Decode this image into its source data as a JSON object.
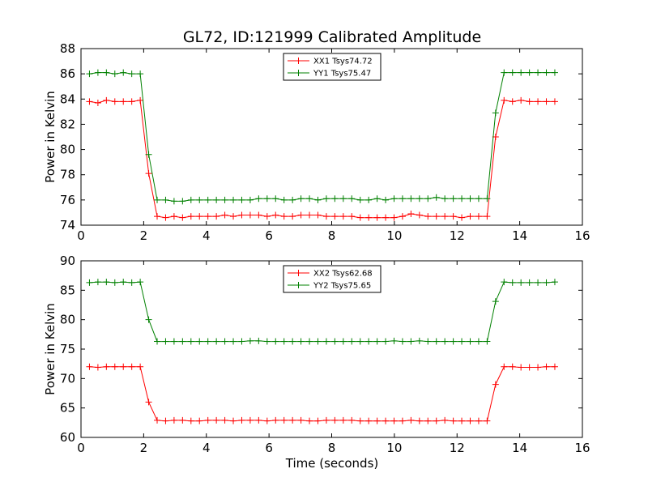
{
  "chart_data": {
    "title": "GL72, ID:121999 Calibrated Amplitude",
    "xlabel": "Time (seconds)",
    "grid": false,
    "panels": [
      {
        "type": "line",
        "ylabel": "Power in Kelvin",
        "xlim": [
          0,
          16
        ],
        "ylim": [
          74,
          88
        ],
        "xticks": [
          "0",
          "2",
          "4",
          "6",
          "8",
          "10",
          "12",
          "14",
          "16"
        ],
        "yticks": [
          "74",
          "76",
          "78",
          "80",
          "82",
          "84",
          "86",
          "88"
        ],
        "legend_position": "upper-center",
        "x": [
          0.27,
          0.54,
          0.81,
          1.08,
          1.35,
          1.62,
          1.89,
          2.16,
          2.43,
          2.7,
          2.97,
          3.24,
          3.51,
          3.78,
          4.05,
          4.32,
          4.59,
          4.86,
          5.13,
          5.4,
          5.67,
          5.94,
          6.21,
          6.48,
          6.75,
          7.02,
          7.29,
          7.56,
          7.83,
          8.1,
          8.37,
          8.64,
          8.91,
          9.18,
          9.45,
          9.72,
          9.99,
          10.26,
          10.53,
          10.8,
          11.07,
          11.34,
          11.61,
          11.88,
          12.15,
          12.42,
          12.69,
          12.96,
          13.23,
          13.5,
          13.77,
          14.04,
          14.31,
          14.58,
          14.85,
          15.12
        ],
        "series": [
          {
            "name": "XX1 Tsys74.72",
            "color": "#ff0000",
            "values": [
              83.8,
              83.7,
              83.9,
              83.8,
              83.8,
              83.8,
              83.9,
              78.1,
              74.7,
              74.6,
              74.7,
              74.6,
              74.7,
              74.7,
              74.7,
              74.7,
              74.8,
              74.7,
              74.8,
              74.8,
              74.8,
              74.7,
              74.8,
              74.7,
              74.7,
              74.8,
              74.8,
              74.8,
              74.7,
              74.7,
              74.7,
              74.7,
              74.6,
              74.6,
              74.6,
              74.6,
              74.6,
              74.7,
              74.9,
              74.8,
              74.7,
              74.7,
              74.7,
              74.7,
              74.6,
              74.7,
              74.7,
              74.7,
              81.0,
              83.9,
              83.8,
              83.9,
              83.8,
              83.8,
              83.8,
              83.8
            ]
          },
          {
            "name": "YY1 Tsys75.47",
            "color": "#008000",
            "values": [
              86.0,
              86.1,
              86.1,
              86.0,
              86.1,
              86.0,
              86.0,
              79.6,
              76.0,
              76.0,
              75.9,
              75.9,
              76.0,
              76.0,
              76.0,
              76.0,
              76.0,
              76.0,
              76.0,
              76.0,
              76.1,
              76.1,
              76.1,
              76.0,
              76.0,
              76.1,
              76.1,
              76.0,
              76.1,
              76.1,
              76.1,
              76.1,
              76.0,
              76.0,
              76.1,
              76.0,
              76.1,
              76.1,
              76.1,
              76.1,
              76.1,
              76.2,
              76.1,
              76.1,
              76.1,
              76.1,
              76.1,
              76.1,
              82.9,
              86.1,
              86.1,
              86.1,
              86.1,
              86.1,
              86.1,
              86.1
            ]
          }
        ]
      },
      {
        "type": "line",
        "ylabel": "Power in Kelvin",
        "xlim": [
          0,
          16
        ],
        "ylim": [
          60,
          90
        ],
        "xticks": [
          "0",
          "2",
          "4",
          "6",
          "8",
          "10",
          "12",
          "14",
          "16"
        ],
        "yticks": [
          "60",
          "65",
          "70",
          "75",
          "80",
          "85",
          "90"
        ],
        "legend_position": "upper-center",
        "x": [
          0.27,
          0.54,
          0.81,
          1.08,
          1.35,
          1.62,
          1.89,
          2.16,
          2.43,
          2.7,
          2.97,
          3.24,
          3.51,
          3.78,
          4.05,
          4.32,
          4.59,
          4.86,
          5.13,
          5.4,
          5.67,
          5.94,
          6.21,
          6.48,
          6.75,
          7.02,
          7.29,
          7.56,
          7.83,
          8.1,
          8.37,
          8.64,
          8.91,
          9.18,
          9.45,
          9.72,
          9.99,
          10.26,
          10.53,
          10.8,
          11.07,
          11.34,
          11.61,
          11.88,
          12.15,
          12.42,
          12.69,
          12.96,
          13.23,
          13.5,
          13.77,
          14.04,
          14.31,
          14.58,
          14.85,
          15.12
        ],
        "series": [
          {
            "name": "XX2 Tsys62.68",
            "color": "#ff0000",
            "values": [
              72.0,
              71.9,
              72.0,
              72.0,
              72.0,
              72.0,
              72.0,
              66.0,
              62.9,
              62.8,
              62.9,
              62.9,
              62.8,
              62.8,
              62.9,
              62.9,
              62.9,
              62.8,
              62.9,
              62.9,
              62.9,
              62.8,
              62.9,
              62.9,
              62.9,
              62.9,
              62.8,
              62.8,
              62.9,
              62.9,
              62.9,
              62.9,
              62.8,
              62.8,
              62.8,
              62.8,
              62.8,
              62.8,
              62.9,
              62.8,
              62.8,
              62.8,
              62.9,
              62.8,
              62.8,
              62.8,
              62.8,
              62.8,
              69.0,
              72.0,
              72.0,
              71.9,
              71.9,
              71.9,
              72.0,
              72.0
            ]
          },
          {
            "name": "YY2 Tsys75.65",
            "color": "#008000",
            "values": [
              86.3,
              86.4,
              86.4,
              86.3,
              86.4,
              86.3,
              86.4,
              80.0,
              76.3,
              76.3,
              76.3,
              76.3,
              76.3,
              76.3,
              76.3,
              76.3,
              76.3,
              76.3,
              76.3,
              76.4,
              76.4,
              76.3,
              76.3,
              76.3,
              76.3,
              76.3,
              76.3,
              76.3,
              76.3,
              76.3,
              76.3,
              76.3,
              76.3,
              76.3,
              76.3,
              76.3,
              76.4,
              76.3,
              76.3,
              76.4,
              76.3,
              76.3,
              76.3,
              76.3,
              76.3,
              76.3,
              76.3,
              76.3,
              83.1,
              86.4,
              86.3,
              86.3,
              86.3,
              86.3,
              86.3,
              86.4
            ]
          }
        ]
      }
    ]
  }
}
